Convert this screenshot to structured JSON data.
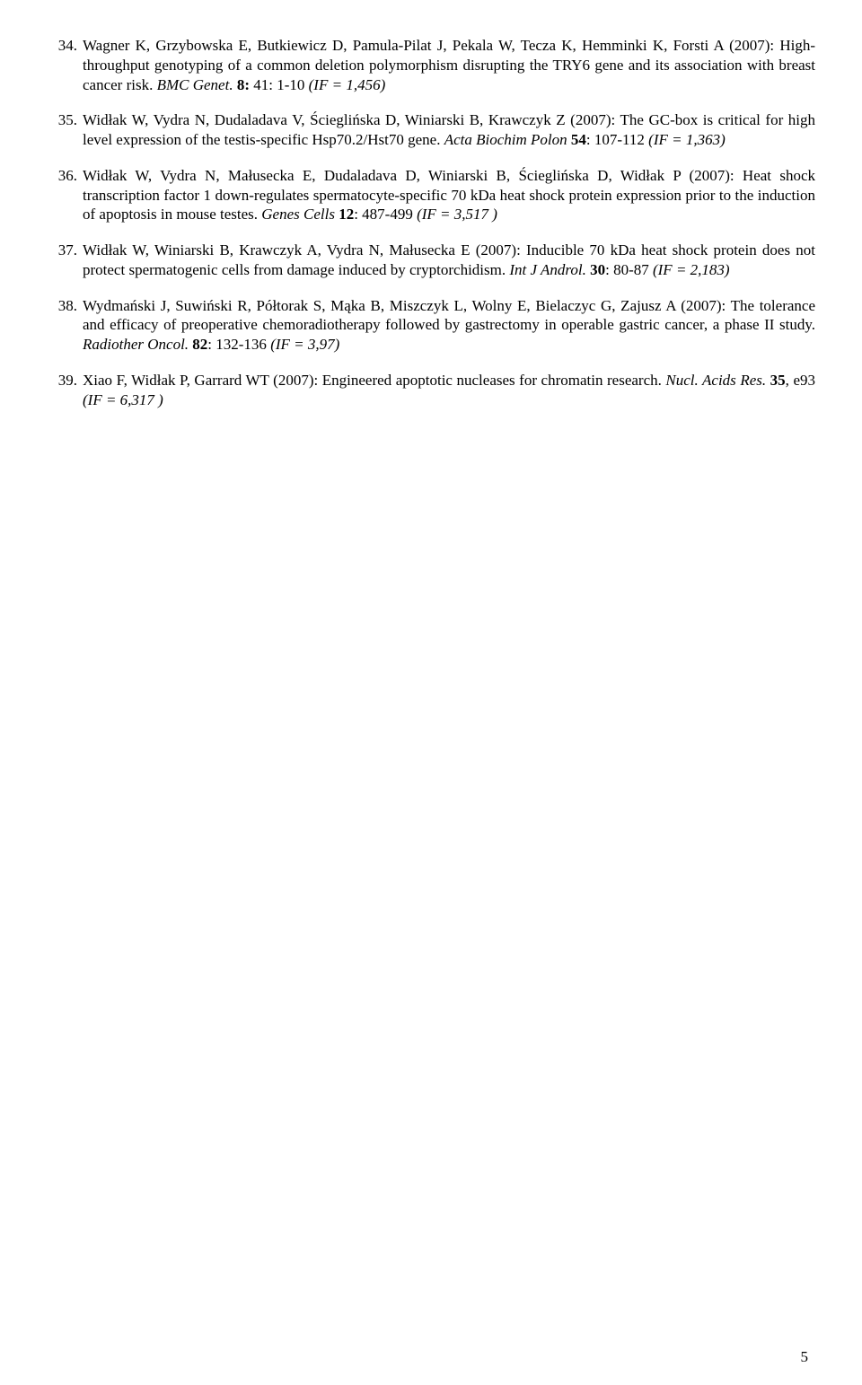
{
  "references": [
    {
      "num": "34.",
      "authors": "Wagner K, Grzybowska E, Butkiewicz D, Pamula-Pilat J, Pekala W, Tecza K, Hemminki K, Forsti A (2007): High-throughput genotyping of a common deletion polymorphism disrupting the TRY6 gene and its association with breast cancer risk. ",
      "journal": "BMC Genet. ",
      "vol": "8: ",
      "pages": "41: 1-10 ",
      "if": "(IF = 1,456)"
    },
    {
      "num": "35.",
      "authors": "Widłak W, Vydra N, Dudaladava V, Ścieglińska D, Winiarski B, Krawczyk Z (2007): The GC-box is critical for high level expression of the testis-specific Hsp70.2/Hst70 gene. ",
      "journal": "Acta Biochim Polon ",
      "vol": "54",
      "pages": ": 107-112 ",
      "if": "(IF = 1,363)"
    },
    {
      "num": "36.",
      "authors": "Widłak W, Vydra N, Małusecka E, Dudaladava D, Winiarski B, Ścieglińska D, Widłak P (2007): Heat shock transcription factor 1 down-regulates spermatocyte-specific 70 kDa heat shock protein expression prior to the induction of apoptosis in mouse testes. ",
      "journal": "Genes Cells ",
      "vol": "12",
      "pages": ": 487-499 ",
      "if": "(IF = 3,517 )"
    },
    {
      "num": "37.",
      "authors": "Widłak W, Winiarski B, Krawczyk A, Vydra N, Małusecka E (2007): Inducible 70 kDa heat shock protein does not protect spermatogenic cells from damage induced by cryptorchidism. ",
      "journal": "Int J Androl. ",
      "vol": "30",
      "pages": ": 80-87 ",
      "if": "(IF = 2,183)"
    },
    {
      "num": "38.",
      "authors": "Wydmański J, Suwiński R, Półtorak S, Mąka B, Miszczyk L, Wolny E, Bielaczyc G, Zajusz A (2007): The tolerance and efficacy of preoperative chemoradiotherapy followed by gastrectomy in operable gastric cancer, a phase II study. ",
      "journal": "Radiother Oncol. ",
      "vol": "82",
      "pages": ": 132-136 ",
      "if": "(IF = 3,97)"
    },
    {
      "num": "39.",
      "authors": "Xiao F, Widłak P, Garrard WT (2007): Engineered apoptotic nucleases for chromatin research. ",
      "journal": "Nucl. Acids Res. ",
      "vol": "35",
      "pages": ", e93 ",
      "if": "(IF = 6,317 )"
    }
  ],
  "page_number": "5"
}
